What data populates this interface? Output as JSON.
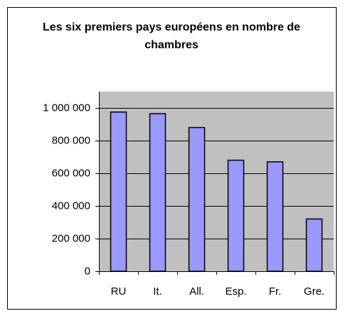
{
  "chart_data": {
    "type": "bar",
    "title": "Les six premiers pays européens en nombre de chambres",
    "categories": [
      "RU",
      "It.",
      "All.",
      "Esp.",
      "Fr.",
      "Gre."
    ],
    "values": [
      975000,
      965000,
      880000,
      680000,
      670000,
      320000
    ],
    "color": "#9999ff",
    "ylim": [
      0,
      1100000
    ],
    "yticks": [
      0,
      {
        "value": 200000,
        "label": "200 000"
      },
      {
        "value": 400000,
        "label": "400 000"
      },
      {
        "value": 600000,
        "label": "600 000"
      },
      {
        "value": 800000,
        "label": "800 000"
      },
      {
        "value": 1000000,
        "label": "1 000 000"
      }
    ],
    "grid": true
  }
}
